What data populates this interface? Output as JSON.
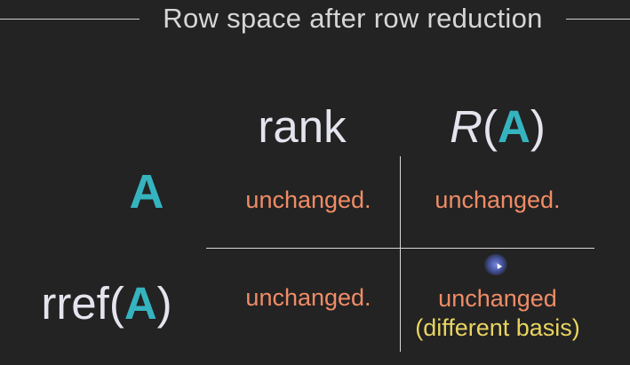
{
  "title": "Row space after row reduction",
  "headers": {
    "rank": "rank",
    "ra_prefix": "R",
    "ra_open": "(",
    "ra_var": "A",
    "ra_close": ")"
  },
  "rows": {
    "a_label": "A",
    "rref_prefix": "rref(",
    "rref_var": "A",
    "rref_close": ")"
  },
  "cells": {
    "a_rank": "unchanged.",
    "a_rowspace": "unchanged.",
    "rref_rank": "unchanged.",
    "rref_rowspace_main": "unchanged",
    "rref_rowspace_note": "(different basis)"
  },
  "colors": {
    "background": "#232323",
    "teal": "#35b4c0",
    "orange": "#f08c66",
    "yellow": "#e8d460",
    "text": "#e4e4ee"
  }
}
